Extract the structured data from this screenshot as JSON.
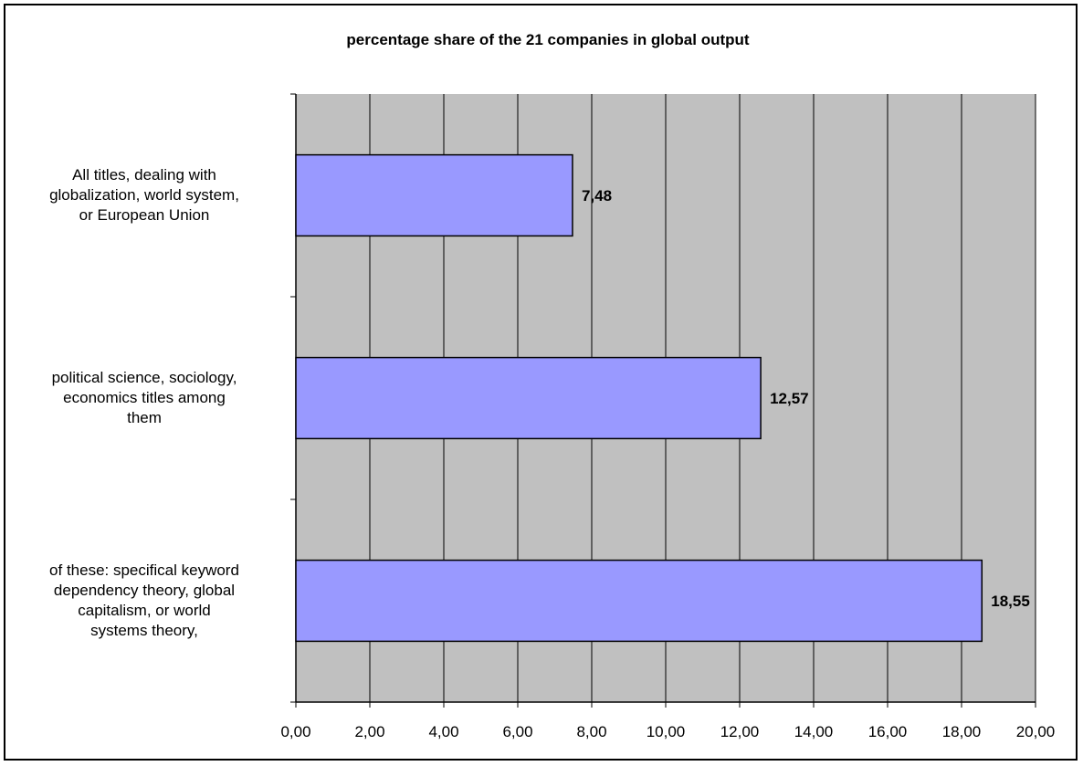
{
  "chart_data": {
    "type": "bar",
    "orientation": "horizontal",
    "title": "percentage share of the 21 companies in global output",
    "categories": [
      "All titles, dealing with globalization, world system, or European Union",
      "political science, sociology, economics titles among them",
      "of these: specifical keyword dependency theory, global capitalism, or world systems theory,"
    ],
    "category_lines": [
      [
        "All titles, dealing with",
        "globalization, world system,",
        "or European Union"
      ],
      [
        "political science, sociology,",
        "economics titles among",
        "them"
      ],
      [
        "of these: specifical keyword",
        "dependency theory, global",
        "capitalism, or world",
        "systems theory,"
      ]
    ],
    "values": [
      7.48,
      12.57,
      18.55
    ],
    "data_labels": [
      "7,48",
      "12,57",
      "18,55"
    ],
    "xlim": [
      0,
      20
    ],
    "x_ticks": [
      0,
      2,
      4,
      6,
      8,
      10,
      12,
      14,
      16,
      18,
      20
    ],
    "x_tick_labels": [
      "0,00",
      "2,00",
      "4,00",
      "6,00",
      "8,00",
      "10,00",
      "12,00",
      "14,00",
      "16,00",
      "18,00",
      "20,00"
    ],
    "grid": "vertical",
    "legend": "none",
    "xlabel": "",
    "ylabel": "",
    "colors": {
      "bar": "#9999ff",
      "plot_background": "#c0c0c0",
      "gridline": "#000000"
    }
  }
}
